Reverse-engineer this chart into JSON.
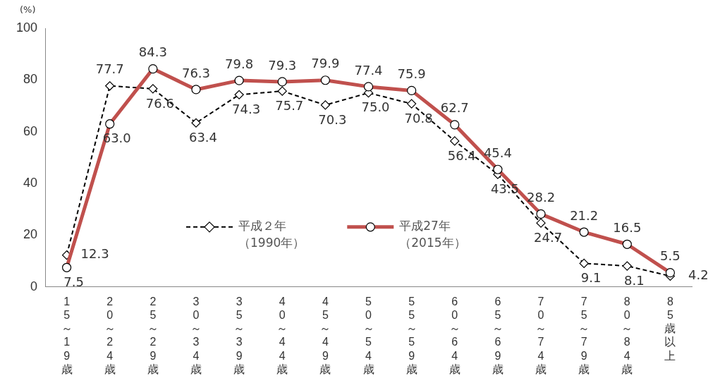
{
  "chart_data": {
    "type": "line",
    "ylabel": "(%)",
    "categories": [
      "15～19歳",
      "20～24歳",
      "25～29歳",
      "30～34歳",
      "35～39歳",
      "40～44歳",
      "45～49歳",
      "50～54歳",
      "55～59歳",
      "60～64歳",
      "65～69歳",
      "70～74歳",
      "75～79歳",
      "80～84歳",
      "85歳以上"
    ],
    "series": [
      {
        "name": "平成２年（1990年）",
        "color": "#000000",
        "marker": "diamond",
        "line_style": "dashed",
        "values": [
          12.3,
          77.7,
          76.6,
          63.4,
          74.3,
          75.7,
          70.3,
          75.0,
          70.8,
          56.4,
          43.5,
          24.7,
          9.1,
          8.1,
          4.2
        ],
        "value_labels": [
          "12.3",
          "77.7",
          "76.6",
          "63.4",
          "74.3",
          "75.7",
          "70.3",
          "75.0",
          "70.8",
          "56.4",
          "43.5",
          "24.7",
          "9.1",
          "8.1",
          "4.2"
        ]
      },
      {
        "name": "平成27年（2015年）",
        "color": "#c0504d",
        "marker": "circle",
        "line_style": "solid",
        "values": [
          7.5,
          63.0,
          84.3,
          76.3,
          79.8,
          79.3,
          79.9,
          77.4,
          75.9,
          62.7,
          45.4,
          28.2,
          21.2,
          16.5,
          5.5
        ],
        "value_labels": [
          "7.5",
          "63.0",
          "84.3",
          "76.3",
          "79.8",
          "79.3",
          "79.9",
          "77.4",
          "75.9",
          "62.7",
          "45.4",
          "28.2",
          "21.2",
          "16.5",
          "5.5"
        ]
      }
    ],
    "ylim": [
      0,
      100
    ],
    "yticks": [
      0,
      20,
      40,
      60,
      80,
      100
    ],
    "grid": false,
    "legend": "bottom"
  }
}
